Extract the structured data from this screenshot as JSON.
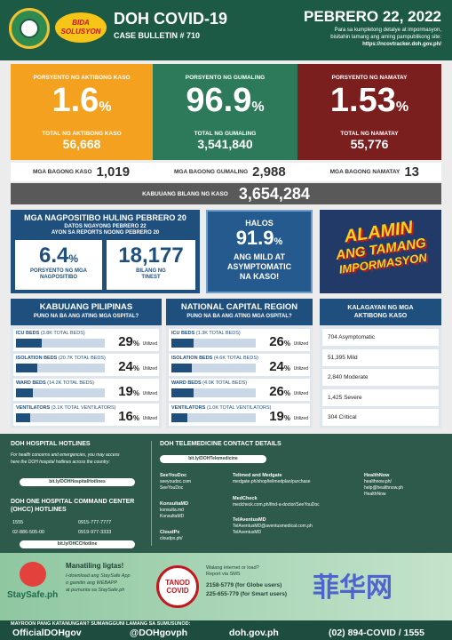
{
  "header": {
    "title": "DOH COVID-19",
    "subtitle": "CASE BULLETIN # 710",
    "logo_text": "BIDA SOLUSYON",
    "date": "PEBRERO 22, 2022",
    "note": [
      "Para sa kumpletong detalye at impormasyon,",
      "bisitahin lamang ang aming pampublikong site:",
      "https://ncovtracker.doh.gov.ph/"
    ]
  },
  "stats": [
    {
      "label": "PORSYENTO NG AKTIBONG KASO",
      "percent": "1.6",
      "percent_sign": "%",
      "total_label": "TOTAL NG AKTIBONG KASO",
      "total": "56,668",
      "color": "#f3a11e"
    },
    {
      "label": "PORSYENTO NG GUMALING",
      "percent": "96.9",
      "percent_sign": "%",
      "total_label": "TOTAL NG GUMALING",
      "total": "3,541,840",
      "color": "#2c7a59"
    },
    {
      "label": "PORSYENTO NG NAMATAY",
      "percent": "1.53",
      "percent_sign": "%",
      "total_label": "TOTAL NG NAMATAY",
      "total": "55,776",
      "color": "#7a1e1e"
    }
  ],
  "new_cases": [
    {
      "label": "MGA BAGONG KASO",
      "value": "1,019"
    },
    {
      "label": "MGA BAGONG GUMALING",
      "value": "2,988"
    },
    {
      "label": "MGA BAGONG NAMATAY",
      "value": "13"
    }
  ],
  "total": {
    "label": "KABUUANG BILANG NG KASO",
    "value": "3,654,284"
  },
  "positivity": {
    "title": "MGA NAGPOSITIBO HULING PEBRERO 20",
    "subtitle": [
      "DATOS NGAYONG PEBRERO 22",
      "AYON SA REPORTS NOONG PEBRERO 20"
    ],
    "rate": "6.4",
    "rate_sign": "%",
    "rate_label": [
      "PORSYENTO NG MGA",
      "NAGPOSITIBO"
    ],
    "tested": "18,177",
    "tested_label": [
      "BILANG NG",
      "TINEST"
    ]
  },
  "mild": {
    "pre": "HALOS",
    "value": "91.9",
    "sign": "%",
    "text": [
      "ANG MILD AT",
      "ASYMPTOMATIC",
      "NA KASO!"
    ]
  },
  "alamin": [
    "ALAMIN",
    "ANG TAMANG",
    "IMPORMASYON"
  ],
  "hospital": [
    {
      "title": "KABUUANG PILIPINAS",
      "subtitle": "PUNO NA BA ANG ATING MGA OSPITAL?",
      "rows": [
        {
          "label": "ICU BEDS",
          "detail": "(3.8K TOTAL BEDS)",
          "value": 29,
          "sign": "%",
          "suffix": "Utilized"
        },
        {
          "label": "ISOLATION BEDS",
          "detail": "(20.7K TOTAL BEDS)",
          "value": 24,
          "sign": "%",
          "suffix": "Utilized"
        },
        {
          "label": "WARD BEDS",
          "detail": "(14.2K TOTAL BEDS)",
          "value": 19,
          "sign": "%",
          "suffix": "Utilized"
        },
        {
          "label": "VENTILATORS",
          "detail": "(3.1K TOTAL VENTILATORS)",
          "value": 16,
          "sign": "%",
          "suffix": "Utilized"
        }
      ]
    },
    {
      "title": "NATIONAL CAPITAL REGION",
      "subtitle": "PUNO NA BA ANG ATING MGA OSPITAL?",
      "rows": [
        {
          "label": "ICU BEDS",
          "detail": "(1.3K TOTAL BEDS)",
          "value": 26,
          "sign": "%",
          "suffix": "Utilized"
        },
        {
          "label": "ISOLATION BEDS",
          "detail": "(4.6K TOTAL BEDS)",
          "value": 24,
          "sign": "%",
          "suffix": "Utilized"
        },
        {
          "label": "WARD BEDS",
          "detail": "(4.0K TOTAL BEDS)",
          "value": 26,
          "sign": "%",
          "suffix": "Utilized"
        },
        {
          "label": "VENTILATORS",
          "detail": "(1.0K TOTAL VENTILATORS)",
          "value": 19,
          "sign": "%",
          "suffix": "Utilized"
        }
      ]
    }
  ],
  "kalagayan": {
    "title": [
      "KALAGAYAN NG MGA",
      "AKTIBONG KASO"
    ],
    "items": [
      "704 Asymptomatic",
      "51,395 Mild",
      "2,840 Moderate",
      "1,425 Severe",
      "304 Critical"
    ]
  },
  "hotlines": {
    "title": "DOH HOSPITAL HOTLINES",
    "text": [
      "For health concerns and emergencies, you may access",
      "here the DOH hospital hotlines across the country:"
    ],
    "link": "bit.ly/DOHHospitalHotlines",
    "ohcc_title": [
      "DOH ONE HOSPITAL COMMAND CENTER",
      "(OHCC) HOTLINES"
    ],
    "numbers": [
      "1555",
      "0915-777-7777",
      "02-886-505-00",
      "0919-977-3333"
    ],
    "ohcc_link": "bit.ly/OHCCHotline"
  },
  "telemedicine": {
    "title": "DOH TELEMEDICINE CONTACT DETAILS",
    "link": "bit.ly/DOHTelemedicine",
    "providers": [
      {
        "name": "SeeYouDoc",
        "lines": [
          "seeyoudoc.com",
          "SeeYouDoc"
        ]
      },
      {
        "name": "KonsultaMD",
        "lines": [
          "konsulta.md",
          "KonsultaMD"
        ]
      },
      {
        "name": "CloudPx",
        "lines": [
          "cloudpx.ph/"
        ]
      },
      {
        "name": "Telimed and Medgate",
        "lines": [
          "medgate.ph/shop/telimedplan/purchase"
        ]
      },
      {
        "name": "MedCheck",
        "lines": [
          "medcheck.com.ph/find-a-doctor/SeeYouDoc"
        ]
      },
      {
        "name": "TelAventusMD",
        "lines": [
          "TelAventusMD@aventusmedical.com.ph",
          "TelAventusMD"
        ]
      },
      {
        "name": "HealthNow",
        "lines": [
          "healthnow.ph/",
          "help@healthnow.ph",
          "HealthNow"
        ]
      }
    ]
  },
  "staysafe": {
    "brand": "StaySafe.ph",
    "title": "Manatiling ligtas!",
    "text": [
      "I-download ang StaySafe App",
      "o gamitin ang WEBAPP",
      "at pumunta sa StaySafe.ph"
    ]
  },
  "tanod": {
    "badge": [
      "TANOD",
      "COVID"
    ],
    "text": [
      "Walang internet or load?",
      "Report via SMS"
    ],
    "lines": [
      "2158-5779 (for Globe users)",
      "225-655-779 (for Smart users)"
    ]
  },
  "bottom": {
    "prompt": "MAYROON PANG KATANUNGAN? SUMANGGUNI LAMANG SA SUMUSUNOD:",
    "contacts": [
      "OfficialDOHgov",
      "@DOHgovph",
      "doh.gov.ph",
      "(02) 894-COVID / 1555"
    ]
  },
  "watermark": "菲华网"
}
